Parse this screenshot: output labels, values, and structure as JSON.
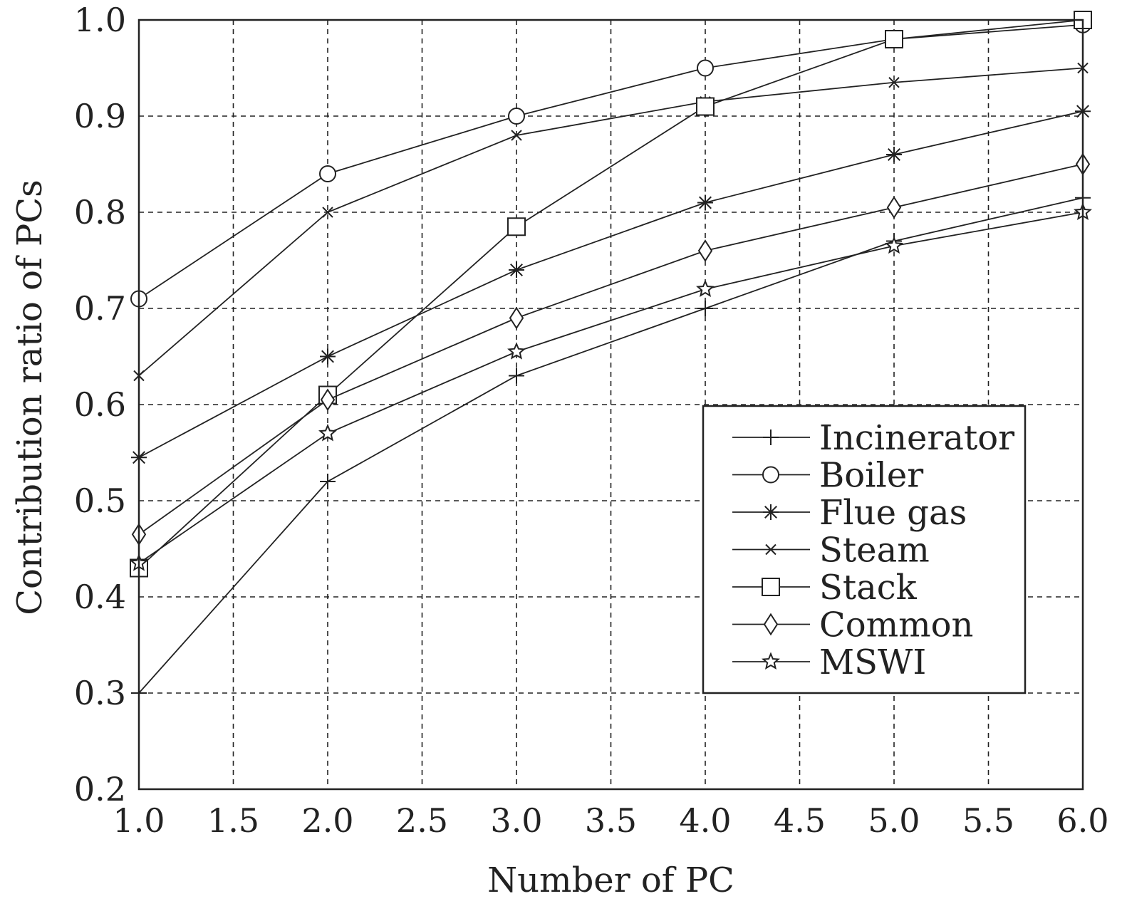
{
  "chart_data": {
    "type": "line",
    "xlabel": "Number of PC",
    "ylabel": "Contribution ratio of PCs",
    "xlim": [
      1.0,
      6.0
    ],
    "ylim": [
      0.2,
      1.0
    ],
    "xticks": [
      "1.0",
      "1.5",
      "2.0",
      "2.5",
      "3.0",
      "3.5",
      "4.0",
      "4.5",
      "5.0",
      "5.5",
      "6.0"
    ],
    "yticks": [
      "0.2",
      "0.3",
      "0.4",
      "0.5",
      "0.6",
      "0.7",
      "0.8",
      "0.9",
      "1.0"
    ],
    "grid": true,
    "legend_position": "lower-right",
    "x": [
      1,
      2,
      3,
      4,
      5,
      6
    ],
    "series": [
      {
        "name": "Incinerator",
        "marker": "plus",
        "values": [
          0.3,
          0.52,
          0.63,
          0.7,
          0.77,
          0.815
        ]
      },
      {
        "name": "Boiler",
        "marker": "circle",
        "values": [
          0.71,
          0.84,
          0.9,
          0.95,
          0.98,
          0.995
        ]
      },
      {
        "name": "Flue gas",
        "marker": "asterisk",
        "values": [
          0.545,
          0.65,
          0.74,
          0.81,
          0.86,
          0.905
        ]
      },
      {
        "name": "Steam",
        "marker": "x",
        "values": [
          0.63,
          0.8,
          0.88,
          0.915,
          0.935,
          0.95
        ]
      },
      {
        "name": "Stack",
        "marker": "square",
        "values": [
          0.43,
          0.61,
          0.785,
          0.91,
          0.98,
          1.0
        ]
      },
      {
        "name": "Common",
        "marker": "diamond",
        "values": [
          0.465,
          0.605,
          0.69,
          0.76,
          0.805,
          0.85
        ]
      },
      {
        "name": "MSWI",
        "marker": "star",
        "values": [
          0.435,
          0.57,
          0.655,
          0.72,
          0.765,
          0.8
        ]
      }
    ]
  }
}
